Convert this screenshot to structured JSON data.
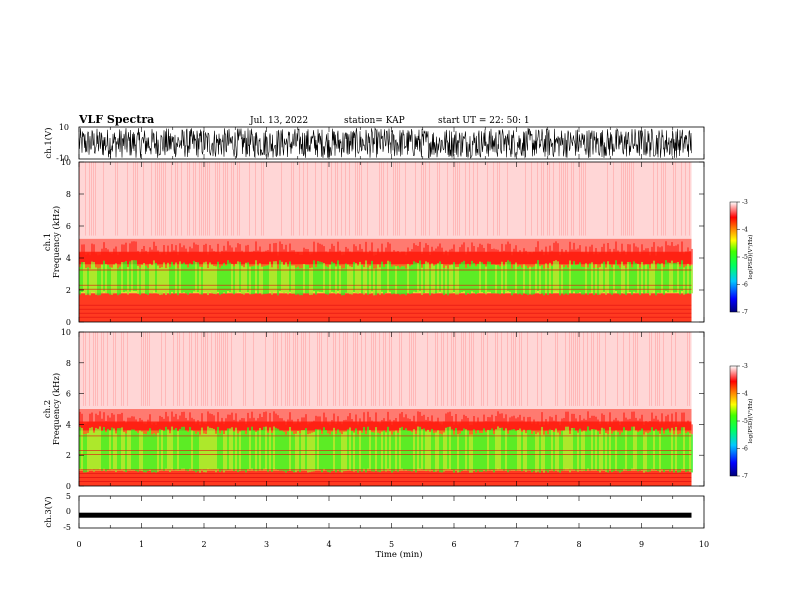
{
  "header": {
    "title": "VLF Spectra",
    "date": "Jul. 13, 2022",
    "station": "station= KAP",
    "start": "start  UT  =   22: 50: 1"
  },
  "chart_data": [
    {
      "type": "line",
      "name": "ch1-waveform",
      "ylabel": "ch.1(V)",
      "ylim": [
        -10,
        10
      ],
      "yticks": [
        "10",
        "-10"
      ],
      "xlim": [
        0,
        10
      ],
      "note_amplitude": "dense noise filling roughly -10 to 10 V over 0 to 9.8 min"
    },
    {
      "type": "heatmap",
      "name": "ch1-spectrogram",
      "ylabel": "ch.1\nFrequency  (kHz)",
      "ylabel_lines": [
        "ch.1",
        "Frequency  (kHz)"
      ],
      "ylim": [
        0,
        10
      ],
      "yticks": [
        "0",
        "2",
        "4",
        "6",
        "8",
        "10"
      ],
      "xlim": [
        0,
        10
      ],
      "data_extent_min": 9.8,
      "bands_khz": {
        "green_core": [
          1.8,
          3.6
        ],
        "red_top": 4.4,
        "sparse_above": 10
      },
      "colorbar": {
        "label": "log(PSD)(V²/Hz)",
        "ticks": [
          "-3",
          "-4",
          "-5",
          "-6",
          "-7"
        ],
        "range": [
          -7,
          -3
        ]
      }
    },
    {
      "type": "heatmap",
      "name": "ch2-spectrogram",
      "ylabel_lines": [
        "ch.2",
        "Frequency  (kHz)"
      ],
      "ylim": [
        0,
        10
      ],
      "yticks": [
        "0",
        "2",
        "4",
        "6",
        "8",
        "10"
      ],
      "xlim": [
        0,
        10
      ],
      "data_extent_min": 9.8,
      "bands_khz": {
        "green_core": [
          1.0,
          3.6
        ],
        "red_top": 4.2,
        "sparse_above": 10
      },
      "colorbar": {
        "label": "log(PSD)(V²/Hz)",
        "ticks": [
          "-3",
          "-4",
          "-5",
          "-6",
          "-7"
        ],
        "range": [
          -7,
          -3
        ]
      }
    },
    {
      "type": "line",
      "name": "ch3-waveform",
      "ylabel": "ch.3(V)",
      "ylim": [
        -5,
        5
      ],
      "yticks": [
        "5",
        "0",
        "-5"
      ],
      "xlim": [
        0,
        10
      ],
      "note_amplitude": "thin band near -1 V over 0 to 9.8 min"
    }
  ],
  "xaxis": {
    "label": "Time  (min)",
    "ticks": [
      "0",
      "1",
      "2",
      "3",
      "4",
      "5",
      "6",
      "7",
      "8",
      "9",
      "10"
    ]
  },
  "colors": {
    "black": "#000000",
    "red": "#ff2020",
    "green": "#33ee22",
    "yellow": "#f0e020",
    "blue": "#0020ff"
  }
}
